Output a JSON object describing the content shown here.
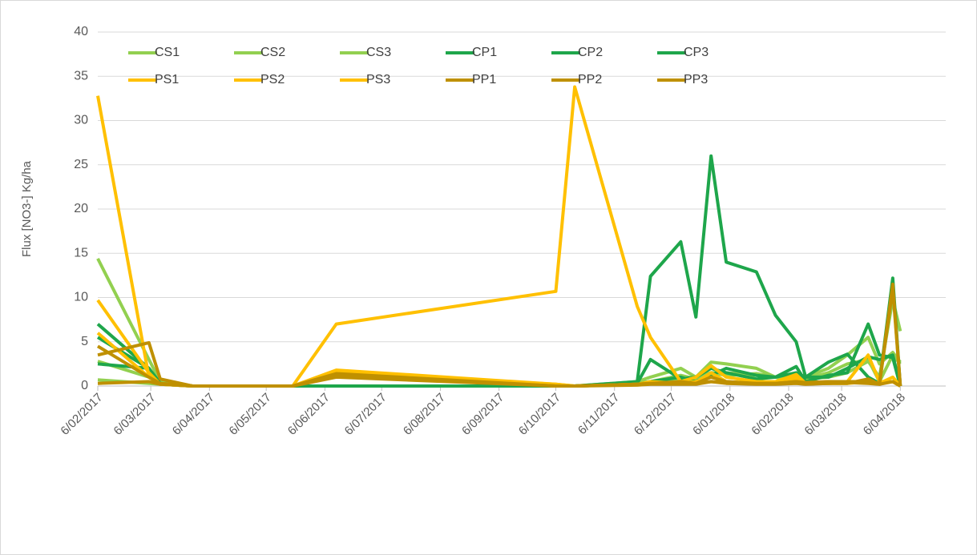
{
  "chart_data": {
    "type": "line",
    "y_label": "Flux [NO3-] Kg/ha",
    "x": [
      "2017-02-06",
      "2017-03-05",
      "2017-03-11",
      "2017-03-28",
      "2017-05-20",
      "2017-06-12",
      "2017-10-06",
      "2017-10-16",
      "2017-11-18",
      "2017-11-25",
      "2017-12-11",
      "2017-12-19",
      "2017-12-27",
      "2018-01-04",
      "2018-01-20",
      "2018-01-30",
      "2018-02-10",
      "2018-02-15",
      "2018-02-27",
      "2018-03-09",
      "2018-03-20",
      "2018-03-26",
      "2018-04-02",
      "2018-04-06"
    ],
    "xlim": [
      "2017-02-06",
      "2018-04-30"
    ],
    "xticks": [
      {
        "value": "2017-02-06",
        "label": "6/02/2017"
      },
      {
        "value": "2017-03-06",
        "label": "6/03/2017"
      },
      {
        "value": "2017-04-06",
        "label": "6/04/2017"
      },
      {
        "value": "2017-05-06",
        "label": "6/05/2017"
      },
      {
        "value": "2017-06-06",
        "label": "6/06/2017"
      },
      {
        "value": "2017-07-06",
        "label": "6/07/2017"
      },
      {
        "value": "2017-08-06",
        "label": "6/08/2017"
      },
      {
        "value": "2017-09-06",
        "label": "6/09/2017"
      },
      {
        "value": "2017-10-06",
        "label": "6/10/2017"
      },
      {
        "value": "2017-11-06",
        "label": "6/11/2017"
      },
      {
        "value": "2017-12-06",
        "label": "6/12/2017"
      },
      {
        "value": "2018-01-06",
        "label": "6/01/2018"
      },
      {
        "value": "2018-02-06",
        "label": "6/02/2018"
      },
      {
        "value": "2018-03-06",
        "label": "6/03/2018"
      },
      {
        "value": "2018-04-06",
        "label": "6/04/2018"
      }
    ],
    "ylim": [
      0,
      40
    ],
    "yticks": [
      0,
      5,
      10,
      15,
      20,
      25,
      30,
      35,
      40
    ],
    "grid": true,
    "legend": "top",
    "series": [
      {
        "name": "CS1",
        "color": "#92d050",
        "values": [
          14.4,
          3,
          0.5,
          0,
          0,
          0,
          0,
          0,
          0.5,
          1,
          2,
          1,
          2.7,
          2.5,
          2,
          1,
          0.5,
          1,
          2,
          3.5,
          5.5,
          2.5,
          3.8,
          2.7
        ]
      },
      {
        "name": "CS2",
        "color": "#92d050",
        "values": [
          2.8,
          1,
          0.3,
          0,
          0,
          0,
          0,
          0,
          0.3,
          0.5,
          1.2,
          0.8,
          1.5,
          1.2,
          1.4,
          1,
          0.5,
          0.8,
          1.5,
          2.5,
          3,
          0.5,
          3.5,
          2.5
        ]
      },
      {
        "name": "CS3",
        "color": "#92d050",
        "values": [
          0.7,
          0.3,
          0.2,
          0,
          0,
          0,
          0,
          0,
          0.3,
          0.5,
          0.8,
          1,
          1.5,
          1.5,
          1.2,
          1,
          1,
          0.8,
          1,
          1.5,
          2.8,
          1,
          9.8,
          6.2
        ]
      },
      {
        "name": "CP1",
        "color": "#1ea64b",
        "values": [
          2.5,
          2,
          0.3,
          0,
          0,
          0,
          0,
          0,
          0.5,
          12.4,
          16.3,
          7.8,
          26,
          14,
          12.9,
          8,
          5,
          1,
          2.7,
          3.6,
          1,
          0.3,
          12.2,
          0
        ]
      },
      {
        "name": "CP2",
        "color": "#1ea64b",
        "values": [
          5.5,
          2,
          0.2,
          0,
          0,
          0,
          0,
          0,
          0.3,
          3,
          0.8,
          1,
          2,
          1.5,
          0.8,
          1,
          2.2,
          0.5,
          1.2,
          1.5,
          7,
          3.5,
          3.2,
          0
        ]
      },
      {
        "name": "CP3",
        "color": "#1ea64b",
        "values": [
          7,
          2,
          0.3,
          0,
          0,
          0,
          0,
          0,
          0.2,
          0.5,
          1,
          0.5,
          1.2,
          2,
          1.2,
          1,
          1.5,
          1,
          1,
          2,
          3.3,
          3,
          3.5,
          0
        ]
      },
      {
        "name": "PS1",
        "color": "#ffc000",
        "values": [
          32.8,
          1,
          0.3,
          0,
          0,
          7,
          10.7,
          33.8,
          9,
          5.5,
          0.5,
          1,
          2.3,
          1,
          0.5,
          0.5,
          1.3,
          0.3,
          0.5,
          0.5,
          0.5,
          0.3,
          0.5,
          0
        ]
      },
      {
        "name": "PS2",
        "color": "#ffc000",
        "values": [
          9.7,
          1.5,
          0.2,
          0,
          0,
          1.8,
          0.2,
          0,
          0.2,
          0.5,
          0.3,
          0.5,
          1,
          0.5,
          0.3,
          0.3,
          0.8,
          0.3,
          0.5,
          0.5,
          3.5,
          0.5,
          0.5,
          0
        ]
      },
      {
        "name": "PS3",
        "color": "#ffc000",
        "values": [
          6,
          1,
          0.2,
          0,
          0,
          1.5,
          0.2,
          0,
          0.2,
          0.3,
          0.3,
          0.4,
          1.5,
          0.5,
          0.3,
          0.3,
          1,
          0.3,
          0.3,
          0.3,
          0.5,
          0.3,
          1,
          0
        ]
      },
      {
        "name": "PP1",
        "color": "#bf9000",
        "values": [
          3.5,
          4.9,
          0.8,
          0,
          0,
          1.2,
          0,
          0,
          0.2,
          0.3,
          0.5,
          0.3,
          0.5,
          0.4,
          0.3,
          0.3,
          0.5,
          0.4,
          0.5,
          0.5,
          0.5,
          0.3,
          11.5,
          0
        ]
      },
      {
        "name": "PP2",
        "color": "#bf9000",
        "values": [
          4.5,
          1,
          0.3,
          0,
          0,
          1,
          0,
          0,
          0.2,
          0.3,
          0.3,
          0.3,
          1,
          0.5,
          0.3,
          0.3,
          0.5,
          0.3,
          0.3,
          0.3,
          0.8,
          0.2,
          0.5,
          0
        ]
      },
      {
        "name": "PP3",
        "color": "#bf9000",
        "values": [
          0.3,
          0.5,
          0.2,
          0,
          0,
          1.4,
          0,
          0,
          0.1,
          0.2,
          0.2,
          0.2,
          0.5,
          0.3,
          0.2,
          0.2,
          0.3,
          0.2,
          0.3,
          0.4,
          0.3,
          0.2,
          11,
          0
        ]
      }
    ]
  }
}
